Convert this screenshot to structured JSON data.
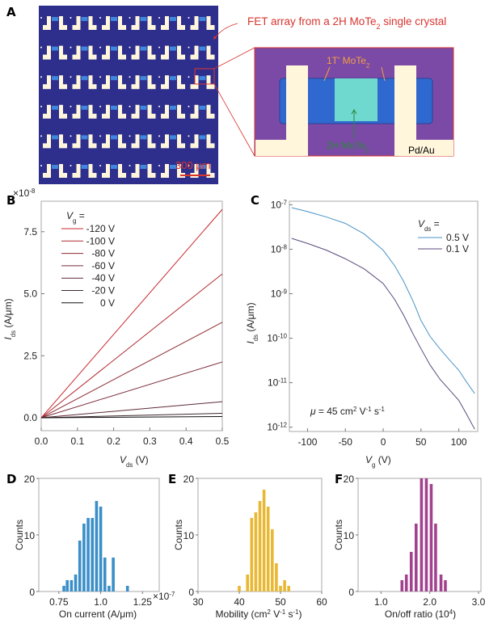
{
  "panel_labels": {
    "a": "A",
    "b": "B",
    "c": "C",
    "d": "D",
    "e": "E",
    "f": "F"
  },
  "panel_a": {
    "caption_pre": "FET array from a 2H MoTe",
    "caption_sub": "2",
    "caption_post": " single crystal",
    "label_1t": "1T' MoTe",
    "label_2h": "2H MoTe",
    "label_sub": "2",
    "label_electrode": "Pd/Au",
    "scale_bar": "300 μm",
    "colors": {
      "substrate": "#2e2f8c",
      "inset_bg": "#7b4aa6",
      "channel_1t": "#2f69cf",
      "channel_2h": "#6fd8cf",
      "electrode": "#fff6dc",
      "callout": "#d9352f",
      "label_1t": "#f0a040",
      "label_2h": "#2a8a3a"
    }
  },
  "chart_data": [
    {
      "panel": "B",
      "type": "line",
      "multiplier_base": "×10",
      "multiplier_exp": "-8",
      "xlabel_symbol": "V",
      "xlabel_sub": "ds",
      "xlabel_unit": " (V)",
      "ylabel_symbol": "I",
      "ylabel_sub": "ds",
      "ylabel_unit": " (A/μm)",
      "xlim": [
        0,
        0.5
      ],
      "ylim": [
        -0.52,
        8.73
      ],
      "xticks": [
        "0.0",
        "0.1",
        "0.2",
        "0.3",
        "0.4",
        "0.5"
      ],
      "yticks": [
        "0.0",
        "2.5",
        "5.0",
        "7.5"
      ],
      "legend_title_symbol": "V",
      "legend_title_sub": "g",
      "legend_title_eq": " =",
      "legend_position": "top-left",
      "x": [
        0,
        0.5
      ],
      "series": [
        {
          "name": "-120 V",
          "values": [
            0,
            8.4
          ],
          "color": "#c8282e"
        },
        {
          "name": "-100 V",
          "values": [
            0,
            5.8
          ],
          "color": "#b02a30"
        },
        {
          "name": "-80 V",
          "values": [
            0,
            3.85
          ],
          "color": "#8e2a33"
        },
        {
          "name": "-60 V",
          "values": [
            0,
            2.25
          ],
          "color": "#7a2a38"
        },
        {
          "name": "-40 V",
          "values": [
            0,
            0.65
          ],
          "color": "#5e2a36"
        },
        {
          "name": "-20 V",
          "values": [
            0,
            0.18
          ],
          "color": "#3e2a2e"
        },
        {
          "name": "0 V",
          "values": [
            0,
            0.05
          ],
          "color": "#111111"
        }
      ]
    },
    {
      "panel": "C",
      "type": "line",
      "yscale": "log",
      "xlabel_symbol": "V",
      "xlabel_sub": "g",
      "xlabel_unit": " (V)",
      "ylabel_symbol": "I",
      "ylabel_sub": "ds",
      "ylabel_unit": "  (A/μm)",
      "xlim": [
        -124,
        125
      ],
      "ylim": [
        8e-13,
        1.2e-07
      ],
      "xticks": [
        "-100",
        "-50",
        "0",
        "50",
        "100"
      ],
      "ytick_base": "10",
      "ytick_exponents": [
        "-7",
        "-8",
        "-9",
        "-10",
        "-11",
        "-12"
      ],
      "legend_title_symbol": "V",
      "legend_title_sub": "ds",
      "legend_title_eq": " =",
      "legend_position": "top-right",
      "annotation": {
        "mu": "μ",
        "text": " = 45 cm",
        "exp1": "2",
        "v": " V",
        "exp2": "-1",
        "s": " s",
        "exp3": "-1"
      },
      "x": [
        -121,
        -100,
        -75,
        -50,
        -25,
        0,
        15,
        27,
        40,
        50,
        62,
        75,
        88,
        100,
        110,
        121
      ],
      "series": [
        {
          "name": "0.5 V",
          "color": "#4a93c6",
          "values": [
            8.6e-08,
            7e-08,
            5.3e-08,
            3.8e-08,
            2.2e-08,
            9.5e-09,
            4.3e-09,
            1.9e-09,
            6.5e-10,
            2.5e-10,
            1.1e-10,
            5.8e-11,
            3.2e-11,
            1.9e-11,
            1.05e-11,
            5.7e-12
          ]
        },
        {
          "name": "0.1 V",
          "color": "#5a4a7c",
          "values": [
            1.75e-08,
            1.35e-08,
            9.5e-09,
            6.1e-09,
            3.6e-09,
            1.7e-09,
            7.5e-10,
            3.3e-10,
            1.2e-10,
            5.8e-11,
            2.5e-11,
            1.2e-11,
            6.8e-12,
            4e-12,
            2e-12,
            9e-13
          ]
        }
      ]
    },
    {
      "panel": "D",
      "type": "bar",
      "xlabel": "On current (A/μm)",
      "ylabel": "Counts",
      "multiplier_base": "×10",
      "multiplier_exp": "-7",
      "xlim": [
        0.63,
        1.35
      ],
      "ylim": [
        0,
        20
      ],
      "xticks": [
        "0.75",
        "1.0",
        "1.25"
      ],
      "yticks": [
        "0",
        "10",
        "20"
      ],
      "color": "#3a8fc9",
      "x": [
        0.78,
        0.8,
        0.825,
        0.85,
        0.875,
        0.9,
        0.925,
        0.95,
        0.975,
        1.0,
        1.025,
        1.05,
        1.075,
        1.16
      ],
      "values": [
        1,
        2,
        2,
        3,
        9,
        12,
        13,
        13,
        16,
        15,
        6,
        1,
        6,
        1
      ]
    },
    {
      "panel": "E",
      "type": "bar",
      "xlabel_pre": "Mobility (cm",
      "xlabel_exp1": "2",
      "xlabel_mid": " V",
      "xlabel_exp2": "-1",
      "xlabel_s": " s",
      "xlabel_exp3": "-1",
      "xlabel_post": ")",
      "ylabel": "Counts",
      "xlim": [
        30,
        60
      ],
      "ylim": [
        0,
        20
      ],
      "xticks": [
        "30",
        "40",
        "50",
        "60"
      ],
      "yticks": [
        "0",
        "10",
        "20"
      ],
      "color": "#e9b832",
      "x": [
        40,
        42,
        43,
        44,
        45,
        46,
        47,
        48,
        49,
        50,
        51,
        52
      ],
      "values": [
        1,
        3,
        13,
        14,
        16,
        18,
        15,
        11,
        5,
        1,
        2,
        1
      ]
    },
    {
      "panel": "F",
      "type": "bar",
      "xlabel_pre": "On/off ratio (10",
      "xlabel_exp": "4",
      "xlabel_post": ")",
      "ylabel": "Counts",
      "xlim": [
        0.53,
        3.05
      ],
      "ylim": [
        0,
        20
      ],
      "xticks": [
        "1.0",
        "2.0",
        "3.0"
      ],
      "yticks": [
        "0",
        "10",
        "20"
      ],
      "color": "#a2428f",
      "x": [
        1.43,
        1.52,
        1.62,
        1.72,
        1.83,
        1.93,
        2.03,
        2.12,
        2.23,
        2.32
      ],
      "values": [
        2,
        3,
        7,
        12,
        20,
        20,
        19,
        12,
        3,
        2
      ]
    }
  ]
}
